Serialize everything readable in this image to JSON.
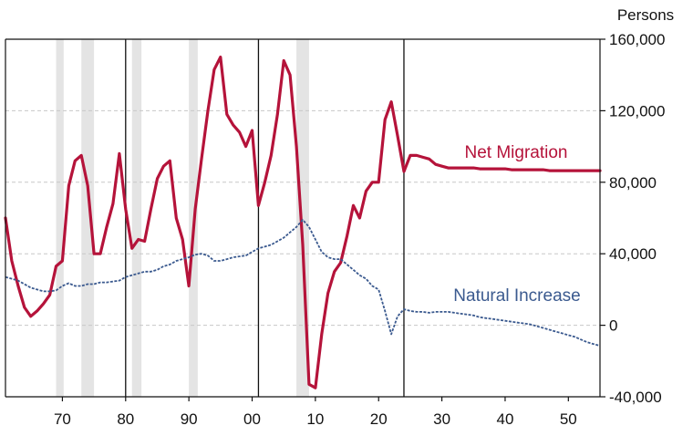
{
  "chart_data": {
    "type": "line",
    "title": "",
    "xlabel": "",
    "ylabel": "Persons",
    "xlim": [
      1961,
      2055
    ],
    "ylim": [
      -40000,
      160000
    ],
    "x_ticks": [
      1970,
      1980,
      1990,
      2000,
      2010,
      2020,
      2030,
      2040,
      2050
    ],
    "x_tick_labels": [
      "70",
      "80",
      "90",
      "00",
      "10",
      "20",
      "30",
      "40",
      "50"
    ],
    "y_ticks": [
      -40000,
      0,
      40000,
      80000,
      120000,
      160000
    ],
    "y_tick_labels": [
      "-40,000",
      "0",
      "40,000",
      "80,000",
      "120,000",
      "160,000"
    ],
    "grid": "horizontal dashed",
    "vertical_lines": [
      1980,
      2001,
      2024
    ],
    "recession_bands": [
      [
        1969,
        1970.2
      ],
      [
        1973,
        1975
      ],
      [
        1981,
        1982.5
      ],
      [
        1990,
        1991.4
      ],
      [
        2007,
        2009
      ]
    ],
    "colors": {
      "net_migration": "#b5133a",
      "natural_increase": "#3b5a8f",
      "band": "#e4e4e4",
      "grid": "#c8c8c8"
    },
    "series": [
      {
        "name": "Net Migration",
        "style": "solid",
        "x": [
          1961,
          1962,
          1963,
          1964,
          1965,
          1966,
          1967,
          1968,
          1969,
          1970,
          1971,
          1972,
          1973,
          1974,
          1975,
          1976,
          1977,
          1978,
          1979,
          1980,
          1981,
          1982,
          1983,
          1984,
          1985,
          1986,
          1987,
          1988,
          1989,
          1990,
          1991,
          1992,
          1993,
          1994,
          1995,
          1996,
          1997,
          1998,
          1999,
          2000,
          2001,
          2002,
          2003,
          2004,
          2005,
          2006,
          2007,
          2008,
          2009,
          2010,
          2011,
          2012,
          2013,
          2014,
          2015,
          2016,
          2017,
          2018,
          2019,
          2020,
          2021,
          2022,
          2023,
          2024,
          2025,
          2026,
          2027,
          2028,
          2029,
          2030,
          2031,
          2032,
          2033,
          2034,
          2035,
          2036,
          2037,
          2038,
          2039,
          2040,
          2041,
          2042,
          2043,
          2044,
          2045,
          2046,
          2047,
          2048,
          2049,
          2050,
          2051,
          2052,
          2053,
          2054,
          2055
        ],
        "values": [
          60000,
          36000,
          22000,
          10000,
          5000,
          8000,
          12000,
          17000,
          33000,
          36000,
          78000,
          92000,
          95000,
          78000,
          40000,
          40000,
          55000,
          68000,
          96000,
          65000,
          43000,
          48000,
          47000,
          65000,
          82000,
          89000,
          92000,
          60000,
          48000,
          22000,
          65000,
          93000,
          120000,
          143000,
          150000,
          118000,
          112000,
          108000,
          100000,
          109000,
          67000,
          80000,
          95000,
          118000,
          148000,
          140000,
          100000,
          45000,
          -33000,
          -35000,
          -5000,
          18000,
          30000,
          35000,
          50000,
          67000,
          60000,
          75000,
          80000,
          80000,
          115000,
          125000,
          106000,
          86000,
          95000,
          95000,
          94000,
          93000,
          90000,
          89000,
          88000,
          88000,
          88000,
          88000,
          88000,
          87500,
          87500,
          87500,
          87500,
          87500,
          87000,
          87000,
          87000,
          87000,
          87000,
          87000,
          86500,
          86500,
          86500,
          86500,
          86500,
          86500,
          86500,
          86500,
          86500
        ]
      },
      {
        "name": "Natural Increase",
        "style": "dashed",
        "x": [
          1961,
          1962,
          1963,
          1964,
          1965,
          1966,
          1967,
          1968,
          1969,
          1970,
          1971,
          1972,
          1973,
          1974,
          1975,
          1976,
          1977,
          1978,
          1979,
          1980,
          1981,
          1982,
          1983,
          1984,
          1985,
          1986,
          1987,
          1988,
          1989,
          1990,
          1991,
          1992,
          1993,
          1994,
          1995,
          1996,
          1997,
          1998,
          1999,
          2000,
          2001,
          2002,
          2003,
          2004,
          2005,
          2006,
          2007,
          2008,
          2009,
          2010,
          2011,
          2012,
          2013,
          2014,
          2015,
          2016,
          2017,
          2018,
          2019,
          2020,
          2021,
          2022,
          2023,
          2024,
          2025,
          2026,
          2027,
          2028,
          2029,
          2030,
          2031,
          2032,
          2033,
          2034,
          2035,
          2036,
          2037,
          2038,
          2039,
          2040,
          2041,
          2042,
          2043,
          2044,
          2045,
          2046,
          2047,
          2048,
          2049,
          2050,
          2051,
          2052,
          2053,
          2054,
          2055
        ],
        "values": [
          27000,
          26000,
          25000,
          23000,
          21000,
          20000,
          19000,
          19000,
          19500,
          22000,
          23500,
          22000,
          22000,
          23000,
          23000,
          24000,
          24000,
          24500,
          25000,
          27000,
          28000,
          29000,
          30000,
          30000,
          31000,
          33000,
          34000,
          36000,
          37000,
          38000,
          39500,
          40000,
          39000,
          36000,
          36000,
          37000,
          38000,
          38500,
          39000,
          41000,
          43000,
          44000,
          45000,
          47000,
          49000,
          52000,
          55000,
          59000,
          55000,
          48000,
          41000,
          38000,
          37000,
          37000,
          34000,
          31000,
          28000,
          26000,
          22000,
          20000,
          8000,
          -5000,
          5000,
          9000,
          8000,
          7500,
          7500,
          7000,
          7500,
          7500,
          7500,
          7000,
          6500,
          6000,
          5500,
          4500,
          4000,
          3500,
          3000,
          2500,
          2000,
          1500,
          1000,
          500,
          -500,
          -1500,
          -2500,
          -3500,
          -4500,
          -5500,
          -6500,
          -8000,
          -9500,
          -10500,
          -11500
        ]
      }
    ],
    "series_labels": [
      "Net Migration",
      "Natural Increase"
    ]
  }
}
